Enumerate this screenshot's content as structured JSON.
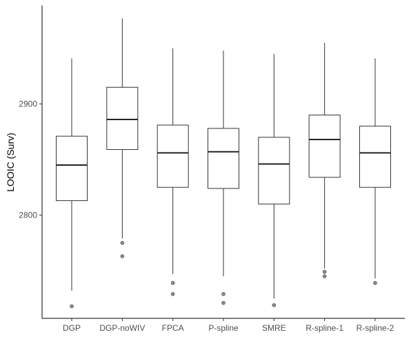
{
  "chart_data": {
    "type": "box",
    "title": "",
    "xlabel": "",
    "ylabel": "LOOIC (Surv)",
    "ylim": [
      2710,
      2985
    ],
    "yticks": [
      2800,
      2900
    ],
    "grid": false,
    "categories": [
      "DGP",
      "DGP-noWIV",
      "FPCA",
      "P-spline",
      "SMRE",
      "R-spline-1",
      "R-spline-2"
    ],
    "boxes": [
      {
        "category": "DGP",
        "whisker_low": 2732,
        "q1": 2813,
        "median": 2845,
        "q3": 2871,
        "whisker_high": 2941,
        "outliers": [
          2718
        ]
      },
      {
        "category": "DGP-noWIV",
        "whisker_low": 2779,
        "q1": 2859,
        "median": 2886,
        "q3": 2915,
        "whisker_high": 2977,
        "outliers": [
          2775,
          2763
        ]
      },
      {
        "category": "FPCA",
        "whisker_low": 2747,
        "q1": 2825,
        "median": 2856,
        "q3": 2881,
        "whisker_high": 2950,
        "outliers": [
          2739,
          2729
        ]
      },
      {
        "category": "P-spline",
        "whisker_low": 2745,
        "q1": 2824,
        "median": 2857,
        "q3": 2878,
        "whisker_high": 2948,
        "outliers": [
          2729,
          2721
        ]
      },
      {
        "category": "SMRE",
        "whisker_low": 2725,
        "q1": 2810,
        "median": 2846,
        "q3": 2870,
        "whisker_high": 2945,
        "outliers": [
          2719
        ]
      },
      {
        "category": "R-spline-1",
        "whisker_low": 2752,
        "q1": 2834,
        "median": 2868,
        "q3": 2890,
        "whisker_high": 2955,
        "outliers": [
          2749,
          2745
        ]
      },
      {
        "category": "R-spline-2",
        "whisker_low": 2743,
        "q1": 2825,
        "median": 2856,
        "q3": 2880,
        "whisker_high": 2941,
        "outliers": [
          2739
        ]
      }
    ],
    "colors": {
      "box_fill": "#ffffff",
      "box_line": "#333333",
      "outlier_fill": "#8a8a8a",
      "axis": "#000000"
    }
  }
}
